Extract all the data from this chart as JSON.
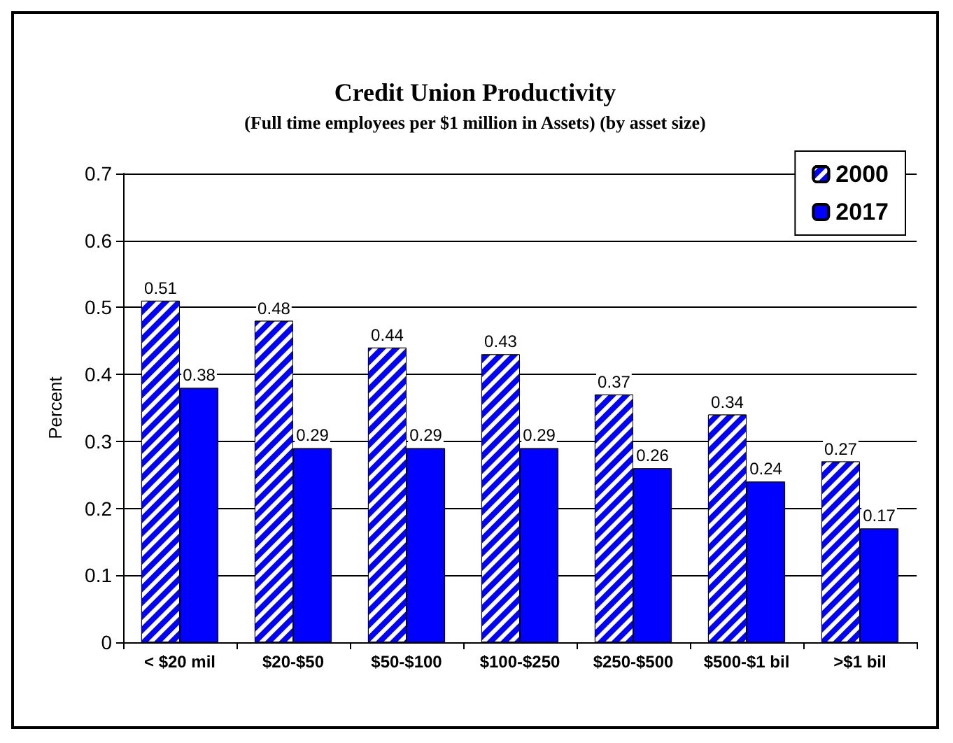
{
  "chart_data": {
    "type": "bar",
    "title": "Credit Union Productivity",
    "subtitle": "(Full time employees per $1 million in Assets) (by asset size)",
    "ylabel": "Percent",
    "categories": [
      "< $20 mil",
      "$20-$50",
      "$50-$100",
      "$100-$250",
      "$250-$500",
      "$500-$1 bil",
      ">$1 bil"
    ],
    "series": [
      {
        "name": "2000",
        "color": "#0000ff",
        "values": [
          0.51,
          0.48,
          0.44,
          0.43,
          0.37,
          0.34,
          0.27
        ]
      },
      {
        "name": "2017",
        "color": "#0000ff",
        "values": [
          0.38,
          0.29,
          0.29,
          0.29,
          0.26,
          0.24,
          0.17
        ]
      }
    ],
    "ylim": [
      0,
      0.7
    ],
    "yticks": [
      0,
      0.1,
      0.2,
      0.3,
      0.4,
      0.5,
      0.6,
      0.7
    ],
    "grid": "y",
    "legend": "top right",
    "data_labels": true
  }
}
